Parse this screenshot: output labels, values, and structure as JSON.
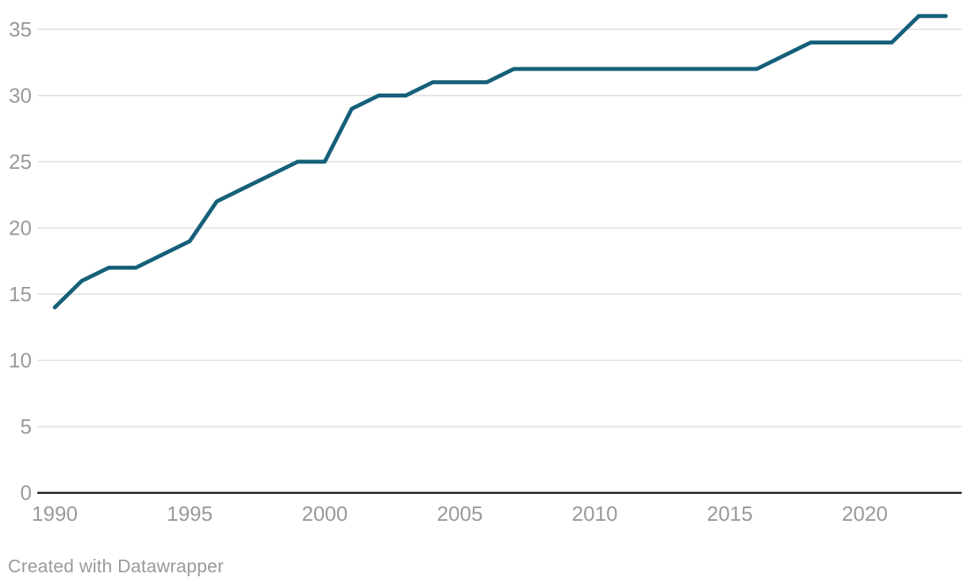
{
  "footer": {
    "credit": "Created with Datawrapper"
  },
  "colors": {
    "line": "#15607a",
    "grid": "#dedede",
    "axis_baseline": "#212121",
    "tick_label": "#999999",
    "background": "#ffffff"
  },
  "chart_data": {
    "type": "line",
    "title": "",
    "xlabel": "",
    "ylabel": "",
    "x": [
      1990,
      1991,
      1992,
      1993,
      1994,
      1995,
      1996,
      1997,
      1998,
      1999,
      2000,
      2001,
      2002,
      2003,
      2004,
      2005,
      2006,
      2007,
      2008,
      2009,
      2010,
      2011,
      2012,
      2013,
      2014,
      2015,
      2016,
      2017,
      2018,
      2019,
      2020,
      2021,
      2022,
      2023
    ],
    "values": [
      14,
      16,
      17,
      17,
      18,
      19,
      22,
      23,
      24,
      25,
      25,
      29,
      30,
      30,
      31,
      31,
      31,
      32,
      32,
      32,
      32,
      32,
      32,
      32,
      32,
      32,
      32,
      33,
      34,
      34,
      34,
      34,
      36,
      36
    ],
    "xlim": [
      1990,
      2023
    ],
    "ylim": [
      0,
      37
    ],
    "xticks": [
      1990,
      1995,
      2000,
      2005,
      2010,
      2015,
      2020
    ],
    "yticks": [
      0,
      5,
      10,
      15,
      20,
      25,
      30,
      35
    ],
    "grid": "horizontal-only",
    "legend": "none",
    "line_width": 5
  }
}
